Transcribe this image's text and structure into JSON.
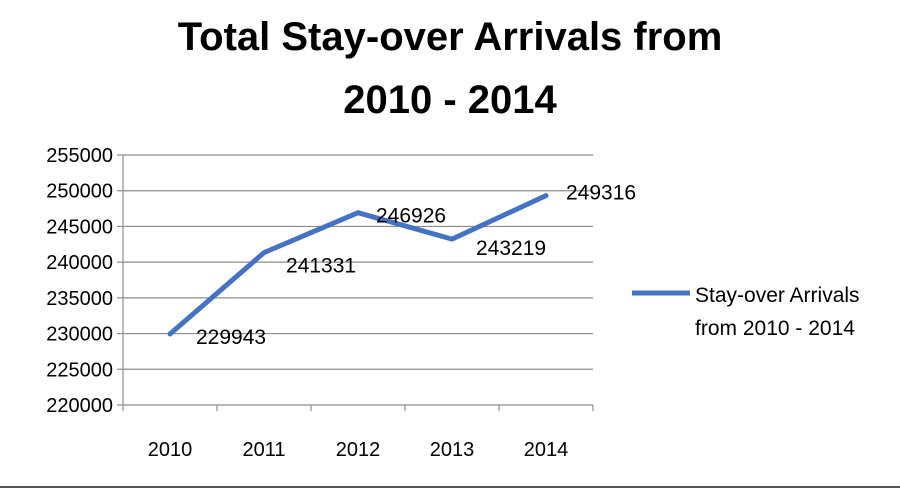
{
  "chart_data": {
    "type": "line",
    "title_line1": "Total Stay-over Arrivals  from",
    "title_line2": "2010 - 2014",
    "categories": [
      "2010",
      "2011",
      "2012",
      "2013",
      "2014"
    ],
    "series": [
      {
        "name_line1": "Stay-over Arrivals",
        "name_line2": "from 2010 - 2014",
        "values": [
          229943,
          241331,
          246926,
          243219,
          249316
        ],
        "color": "#4472C4"
      }
    ],
    "data_labels": [
      "229943",
      "241331",
      "246926",
      "243219",
      "249316"
    ],
    "y_ticks": [
      "220000",
      "225000",
      "230000",
      "235000",
      "240000",
      "245000",
      "250000",
      "255000"
    ],
    "ylim": [
      220000,
      255000
    ],
    "grid": true,
    "legend_position": "right"
  }
}
